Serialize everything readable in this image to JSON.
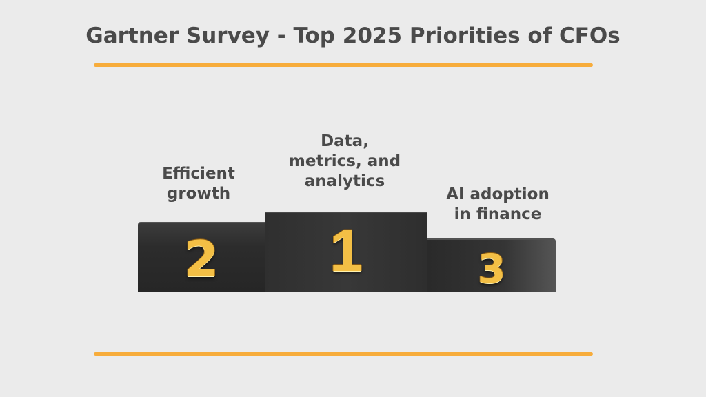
{
  "title": "Gartner Survey - Top 2025 Priorities of CFOs",
  "podium": {
    "first": {
      "rank": "1",
      "label_line1": "Data,",
      "label_line2": "metrics, and",
      "label_line3": "analytics"
    },
    "second": {
      "rank": "2",
      "label_line1": "Efficient",
      "label_line2": "growth"
    },
    "third": {
      "rank": "3",
      "label_line1": "AI adoption",
      "label_line2": "in finance"
    }
  },
  "colors": {
    "accent": "#f7ac3b",
    "background": "#ebebeb",
    "text": "#4a4a4a",
    "numeral_gold": "#f3bf45",
    "podium_block": "#2e2e2e"
  }
}
